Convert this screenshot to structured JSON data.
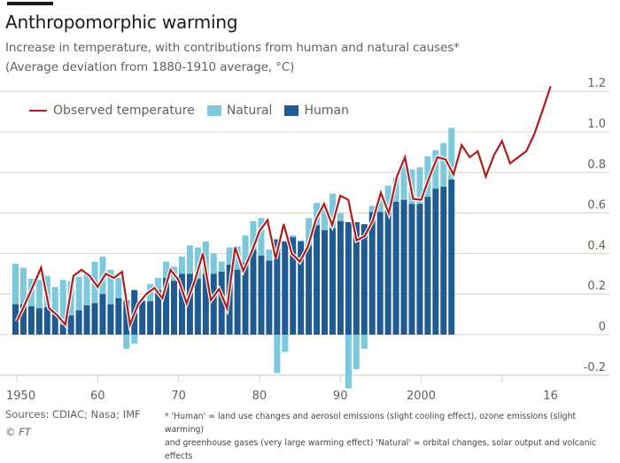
{
  "header": {
    "title": "Anthropomorphic warming",
    "subtitle_line1": "Increase in temperature, with contributions from human and natural causes*",
    "subtitle_line2": "(Average deviation from 1880-1910 average, °C)"
  },
  "legend": {
    "observed": "Observed temperature",
    "natural": "Natural",
    "human": "Human"
  },
  "footer": {
    "sources": "Sources: CDIAC; Nasa; IMF",
    "copyright": "© FT",
    "footnote_line1": "* 'Human' = land use changes and aerosol emissions (slight cooling effect), ozone emissions (slight warming)",
    "footnote_line2": "and greenhouse gases (very large warming effect) 'Natural' = orbital changes, solar output and volcanic effects"
  },
  "colors": {
    "observed": "#b01c1c",
    "natural": "#7cc9db",
    "human": "#1f5a91",
    "grid": "#dcd6cc",
    "text": "#66605a"
  },
  "chart_data": {
    "type": "bar",
    "title": "Anthropomorphic warming",
    "subtitle": "Increase in temperature, with contributions from human and natural causes* (Average deviation from 1880-1910 average, °C)",
    "xlabel": "",
    "ylabel": "°C",
    "ylim": [
      -0.2,
      1.2
    ],
    "xlim": [
      1950,
      2016
    ],
    "grid": true,
    "legend_position": "top-left",
    "y_ticks": [
      1.2,
      1.0,
      0.8,
      0.6,
      0.4,
      0.2,
      0,
      -0.2
    ],
    "y_tick_labels": [
      "1.2",
      "1.0",
      "0.8",
      "0.6",
      "0.4",
      "0.2",
      "0",
      "-0.2"
    ],
    "x_ticks": [
      1950,
      1960,
      1970,
      1980,
      1990,
      2000,
      2010,
      2016
    ],
    "x_tick_labels": [
      "1950",
      "60",
      "70",
      "80",
      "90",
      "2000",
      "",
      "16"
    ],
    "bar_years": [
      1950,
      1951,
      1952,
      1953,
      1954,
      1955,
      1956,
      1957,
      1958,
      1959,
      1960,
      1961,
      1962,
      1963,
      1964,
      1965,
      1966,
      1967,
      1968,
      1969,
      1970,
      1971,
      1972,
      1973,
      1974,
      1975,
      1976,
      1977,
      1978,
      1979,
      1980,
      1981,
      1982,
      1983,
      1984,
      1985,
      1986,
      1987,
      1988,
      1989,
      1990,
      1991,
      1992,
      1993,
      1994,
      1995,
      1996,
      1997,
      1998,
      1999,
      2000,
      2001,
      2002,
      2003,
      2004,
      2005
    ],
    "series": [
      {
        "name": "Human",
        "type": "stacked-bar",
        "values": [
          0.15,
          0.15,
          0.14,
          0.13,
          0.135,
          0.1,
          0.05,
          0.095,
          0.12,
          0.145,
          0.155,
          0.2,
          0.15,
          0.18,
          0.17,
          0.22,
          0.165,
          0.165,
          0.22,
          0.28,
          0.265,
          0.3,
          0.3,
          0.275,
          0.3,
          0.3,
          0.31,
          0.345,
          0.32,
          0.355,
          0.42,
          0.39,
          0.365,
          0.47,
          0.46,
          0.48,
          0.46,
          0.44,
          0.54,
          0.515,
          0.525,
          0.56,
          0.555,
          0.555,
          0.545,
          0.605,
          0.605,
          0.61,
          0.655,
          0.665,
          0.645,
          0.645,
          0.68,
          0.72,
          0.73,
          0.765
        ]
      },
      {
        "name": "Natural",
        "type": "stacked-bar",
        "values": [
          0.2,
          0.18,
          0.135,
          0.14,
          0.155,
          0.135,
          0.22,
          0.17,
          0.165,
          0.155,
          0.205,
          0.185,
          0.17,
          0.1,
          -0.07,
          -0.045,
          0.005,
          0.085,
          0.06,
          0.08,
          0.07,
          0.085,
          0.14,
          0.155,
          0.16,
          0.1,
          0.05,
          0.085,
          0.115,
          0.135,
          0.14,
          0.185,
          0.055,
          -0.19,
          -0.085,
          0.01,
          0.005,
          0.135,
          0.11,
          0.125,
          0.17,
          0.04,
          -0.265,
          -0.17,
          -0.07,
          0.03,
          0.08,
          0.125,
          0.12,
          0.195,
          0.17,
          0.18,
          0.2,
          0.19,
          0.215,
          0.255
        ]
      },
      {
        "name": "Observed temperature",
        "type": "line",
        "x": [
          1950,
          1951,
          1952,
          1953,
          1954,
          1955,
          1956,
          1957,
          1958,
          1959,
          1960,
          1961,
          1962,
          1963,
          1964,
          1965,
          1966,
          1967,
          1968,
          1969,
          1970,
          1971,
          1972,
          1973,
          1974,
          1975,
          1976,
          1977,
          1978,
          1979,
          1980,
          1981,
          1982,
          1983,
          1984,
          1985,
          1986,
          1987,
          1988,
          1989,
          1990,
          1991,
          1992,
          1993,
          1994,
          1995,
          1996,
          1997,
          1998,
          1999,
          2000,
          2001,
          2002,
          2003,
          2004,
          2005,
          2006,
          2007,
          2008,
          2009,
          2010,
          2011,
          2012,
          2013,
          2014,
          2015,
          2016
        ],
        "values": [
          0.065,
          0.15,
          0.24,
          0.33,
          0.13,
          0.095,
          0.05,
          0.29,
          0.32,
          0.29,
          0.235,
          0.3,
          0.28,
          0.31,
          0.05,
          0.15,
          0.2,
          0.23,
          0.18,
          0.32,
          0.27,
          0.155,
          0.265,
          0.4,
          0.17,
          0.225,
          0.13,
          0.43,
          0.315,
          0.405,
          0.51,
          0.565,
          0.375,
          0.545,
          0.4,
          0.36,
          0.435,
          0.57,
          0.645,
          0.54,
          0.685,
          0.665,
          0.465,
          0.485,
          0.56,
          0.7,
          0.6,
          0.78,
          0.875,
          0.67,
          0.665,
          0.775,
          0.875,
          0.865,
          0.79,
          0.935,
          0.875,
          0.905,
          0.78,
          0.885,
          0.955,
          0.845,
          0.875,
          0.905,
          0.99,
          1.105,
          1.225
        ]
      }
    ]
  }
}
